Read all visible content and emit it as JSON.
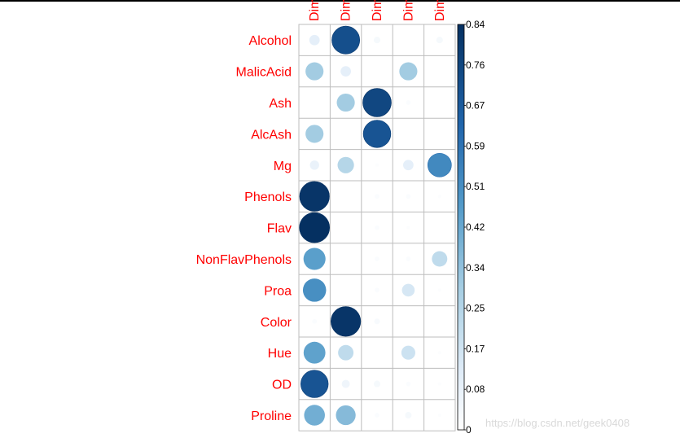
{
  "chart_data": {
    "type": "heatmap",
    "title": "",
    "rows": [
      "Alcohol",
      "MalicAcid",
      "Ash",
      "AlcAsh",
      "Mg",
      "Phenols",
      "Flav",
      "NonFlavPhenols",
      "Proa",
      "Color",
      "Hue",
      "OD",
      "Proline"
    ],
    "columns": [
      "Dim",
      "Dim",
      "Dim",
      "Dim",
      "Dim"
    ],
    "values": [
      [
        0.1,
        0.72,
        0.04,
        0.0,
        0.04
      ],
      [
        0.3,
        0.1,
        0.0,
        0.3,
        0.0
      ],
      [
        0.0,
        0.3,
        0.75,
        0.02,
        0.0
      ],
      [
        0.3,
        0.0,
        0.7,
        0.0,
        0.0
      ],
      [
        0.08,
        0.25,
        0.01,
        0.1,
        0.52
      ],
      [
        0.82,
        0.0,
        0.02,
        0.02,
        0.01
      ],
      [
        0.84,
        0.0,
        0.02,
        0.01,
        0.0
      ],
      [
        0.45,
        0.0,
        0.02,
        0.02,
        0.22
      ],
      [
        0.5,
        0.0,
        0.02,
        0.15,
        0.01
      ],
      [
        0.02,
        0.82,
        0.03,
        0.0,
        0.0
      ],
      [
        0.44,
        0.22,
        0.0,
        0.18,
        0.01
      ],
      [
        0.7,
        0.06,
        0.04,
        0.02,
        0.01
      ],
      [
        0.4,
        0.36,
        0.02,
        0.04,
        0.01
      ]
    ],
    "color_scale": {
      "min": 0,
      "max": 0.84,
      "ticks": [
        "0.84",
        "0.76",
        "0.67",
        "0.59",
        "0.51",
        "0.42",
        "0.34",
        "0.25",
        "0.17",
        "0.08",
        "0"
      ],
      "low_color": "#ffffff",
      "high_color": "#053061"
    },
    "grid": true,
    "legend": "right",
    "label_color": "#ff0000"
  },
  "watermark": "https://blog.csdn.net/geek0408"
}
